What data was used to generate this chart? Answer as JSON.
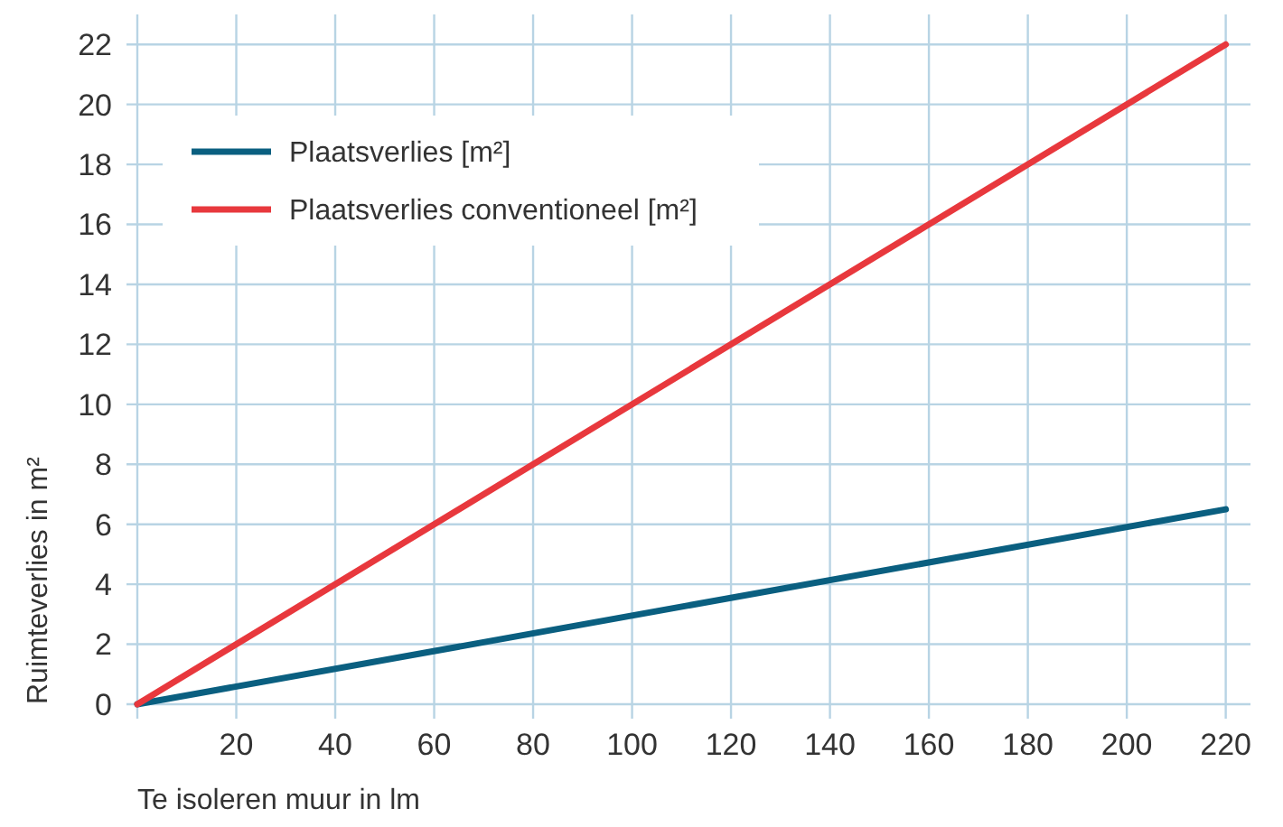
{
  "chart_data": {
    "type": "line",
    "xlabel": "Te isoleren muur in lm",
    "ylabel": "Ruimteverlies in m²",
    "x": [
      0,
      220
    ],
    "series": [
      {
        "name": "Plaatsverlies [m²]",
        "color": "#0a5f80",
        "values": [
          0,
          6.5
        ]
      },
      {
        "name": "Plaatsverlies conventioneel [m²]",
        "color": "#e8383d",
        "values": [
          0,
          22
        ]
      }
    ],
    "xlim": [
      0,
      225
    ],
    "ylim": [
      0,
      23
    ],
    "xticks": [
      {
        "value": 0,
        "label": null
      },
      20,
      40,
      60,
      80,
      100,
      120,
      140,
      160,
      180,
      200,
      220
    ],
    "yticks": [
      0,
      2,
      4,
      6,
      8,
      10,
      12,
      14,
      16,
      18,
      20,
      22
    ],
    "grid": true,
    "legend": "top left",
    "marker": "none",
    "line_style": "solid"
  }
}
